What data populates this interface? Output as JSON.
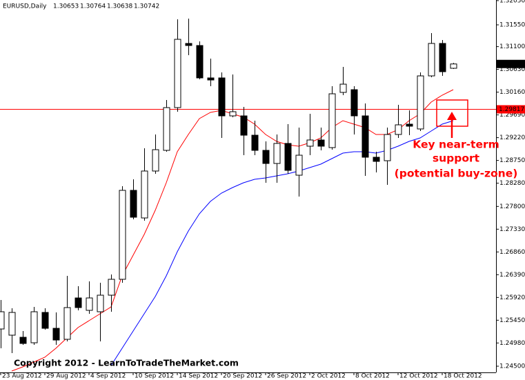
{
  "chart_data": {
    "type": "candlestick",
    "title": "EURUSD,Daily",
    "categories": [
      "23 Aug 2012",
      null,
      null,
      null,
      "29 Aug 2012",
      null,
      null,
      null,
      "4 Sep 2012",
      null,
      null,
      null,
      "10 Sep 2012",
      null,
      null,
      null,
      "14 Sep 2012",
      null,
      null,
      null,
      "20 Sep 2012",
      null,
      null,
      null,
      "26 Sep 2012",
      null,
      null,
      null,
      "2 Oct 2012",
      null,
      null,
      null,
      "8 Oct 2012",
      null,
      null,
      null,
      "12 Oct 2012",
      null,
      null,
      null,
      "18 Oct 2012",
      null
    ],
    "open": [
      1.25269,
      1.25141,
      1.25098,
      1.24984,
      1.25611,
      1.25283,
      1.25056,
      1.2591,
      1.25654,
      1.25625,
      1.25967,
      1.26295,
      1.28132,
      1.27562,
      1.28531,
      1.28958,
      1.29841,
      1.31166,
      1.31123,
      1.30454,
      1.30454,
      1.2967,
      1.2967,
      1.29271,
      1.28958,
      1.28687,
      1.29101,
      1.28445,
      1.29044,
      1.29172,
      1.29015,
      1.30155,
      1.30211,
      1.2967,
      1.28816,
      1.28744,
      1.29286,
      1.29499,
      1.294,
      1.30496,
      1.31166,
      1.30653
    ],
    "high": [
      1.25867,
      1.25696,
      1.25226,
      1.25725,
      1.25696,
      1.25611,
      1.26366,
      1.26152,
      1.26252,
      1.26223,
      1.26394,
      1.28217,
      1.2836,
      1.29001,
      1.29286,
      1.29998,
      1.31664,
      1.31679,
      1.31209,
      1.30852,
      1.30568,
      1.30525,
      1.29855,
      1.29571,
      1.29143,
      1.29286,
      1.29499,
      1.29428,
      1.29713,
      1.29428,
      1.30283,
      1.30682,
      1.30283,
      1.29927,
      1.2893,
      1.29428,
      1.29898,
      1.29784,
      1.30568,
      1.31379,
      1.31237,
      1.30764
    ],
    "low": [
      1.2487,
      1.24771,
      1.24942,
      1.24942,
      1.25255,
      1.24942,
      1.25013,
      1.25654,
      1.25583,
      1.25013,
      1.25625,
      1.26223,
      1.27534,
      1.27505,
      1.28474,
      1.2893,
      1.29756,
      1.30924,
      1.30425,
      1.30283,
      1.29214,
      1.29642,
      1.28858,
      1.28858,
      1.28289,
      1.28289,
      1.28474,
      1.28004,
      1.28858,
      1.28958,
      1.28972,
      1.30098,
      1.29286,
      1.28431,
      1.28502,
      1.28246,
      1.29214,
      1.29271,
      1.29357,
      1.30468,
      1.30496,
      1.30638
    ],
    "close": [
      1.25625,
      1.25611,
      1.2497,
      1.25625,
      1.25283,
      1.25041,
      1.25711,
      1.25711,
      1.2591,
      1.25967,
      1.26295,
      1.28132,
      1.27577,
      1.28531,
      1.28972,
      1.29841,
      1.31251,
      1.31123,
      1.30454,
      1.30411,
      1.2967,
      1.29756,
      1.29271,
      1.28958,
      1.28687,
      1.29101,
      1.28545,
      1.28858,
      1.29172,
      1.29044,
      1.30126,
      1.30325,
      1.2967,
      1.28816,
      1.2873,
      1.29286,
      1.29485,
      1.29457,
      1.30496,
      1.31166,
      1.30582,
      1.30742
    ],
    "lines": [
      {
        "color": "#ff0000",
        "values": [
          null,
          1.244,
          1.24486,
          1.24585,
          1.24685,
          1.2487,
          1.25084,
          1.25298,
          1.2544,
          1.25583,
          1.25725,
          1.26366,
          1.26793,
          1.2722,
          1.27719,
          1.28289,
          1.2893,
          1.29286,
          1.29613,
          1.29741,
          1.29784,
          1.29713,
          1.29642,
          1.29499,
          1.29286,
          1.29143,
          1.29072,
          1.29044,
          1.29115,
          1.29214,
          1.29428,
          1.29571,
          1.29499,
          1.29428,
          1.29286,
          1.29286,
          1.29385,
          1.29571,
          1.29713,
          1.29955,
          1.30098,
          1.30211
        ]
      },
      {
        "color": "#0000ff",
        "values": [
          null,
          null,
          null,
          null,
          null,
          null,
          null,
          null,
          null,
          null,
          1.24514,
          1.2487,
          1.25226,
          1.25583,
          1.25939,
          1.26366,
          1.26864,
          1.27292,
          1.27648,
          1.27904,
          1.28075,
          1.28189,
          1.28289,
          1.2836,
          1.28388,
          1.28431,
          1.28474,
          1.28531,
          1.28602,
          1.28673,
          1.28787,
          1.28901,
          1.2893,
          1.2893,
          1.28901,
          1.28958,
          1.29044,
          1.29143,
          1.29214,
          1.29357,
          1.29499,
          1.29571
        ]
      }
    ],
    "hline": {
      "value": 1.29817,
      "color": "#ff0000"
    },
    "ylim": [
      1.24372,
      1.32063
    ],
    "yticks": [
      {
        "value": 1.3205,
        "label": "1.32050"
      },
      {
        "value": 1.3155,
        "label": "1.31550"
      },
      {
        "value": 1.311,
        "label": "1.31100"
      },
      {
        "value": 1.3063,
        "label": "1.30630"
      },
      {
        "value": 1.3016,
        "label": "1.30160"
      },
      {
        "value": 1.2969,
        "label": "1.29690"
      },
      {
        "value": 1.2922,
        "label": "1.29220"
      },
      {
        "value": 1.2875,
        "label": "1.28750"
      },
      {
        "value": 1.2828,
        "label": "1.28280"
      },
      {
        "value": 1.278,
        "label": "1.27800"
      },
      {
        "value": 1.2733,
        "label": "1.27330"
      },
      {
        "value": 1.2686,
        "label": "1.26860"
      },
      {
        "value": 1.2639,
        "label": "1.26390"
      },
      {
        "value": 1.2592,
        "label": "1.25920"
      },
      {
        "value": 1.2545,
        "label": "1.25450"
      },
      {
        "value": 1.2498,
        "label": "1.24980"
      },
      {
        "value": 1.245,
        "label": "1.24500"
      }
    ],
    "annotation": [
      "Key near-term",
      "support",
      "(potential buy-zone)"
    ],
    "copyright": "Copyright 2012 - LearnToTradeTheMarket.com"
  }
}
